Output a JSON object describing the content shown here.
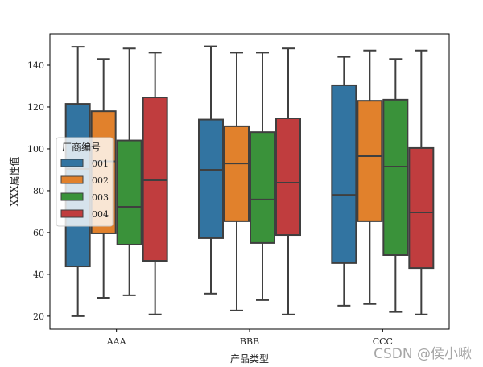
{
  "chart_data": {
    "type": "boxplot",
    "title": "",
    "xlabel": "产品类型",
    "ylabel": "XXX属性值",
    "ylim": [
      13.8,
      155
    ],
    "yticks": [
      20,
      40,
      60,
      80,
      100,
      120,
      140
    ],
    "categories": [
      "AAA",
      "BBB",
      "CCC"
    ],
    "legend": {
      "title": "厂商编号",
      "placement": "center-left"
    },
    "series": [
      {
        "name": "001",
        "color": "#3274a1",
        "boxes": [
          {
            "whislo": 20,
            "q1": 43.8,
            "med": 90.4,
            "q3": 121.5,
            "whishi": 148.8
          },
          {
            "whislo": 30.8,
            "q1": 57.3,
            "med": 90,
            "q3": 114,
            "whishi": 149
          },
          {
            "whislo": 25,
            "q1": 45.4,
            "med": 78,
            "q3": 130.4,
            "whishi": 144
          }
        ]
      },
      {
        "name": "002",
        "color": "#e1812c",
        "boxes": [
          {
            "whislo": 28.8,
            "q1": 59.6,
            "med": 94,
            "q3": 118,
            "whishi": 143
          },
          {
            "whislo": 22.7,
            "q1": 65.4,
            "med": 93,
            "q3": 110.8,
            "whishi": 146
          },
          {
            "whislo": 25.8,
            "q1": 65.4,
            "med": 96.5,
            "q3": 123,
            "whishi": 147
          }
        ]
      },
      {
        "name": "003",
        "color": "#3a923a",
        "boxes": [
          {
            "whislo": 30,
            "q1": 54.2,
            "med": 72.3,
            "q3": 104,
            "whishi": 148
          },
          {
            "whislo": 27.7,
            "q1": 55,
            "med": 75.8,
            "q3": 108,
            "whishi": 146
          },
          {
            "whislo": 22,
            "q1": 49.2,
            "med": 91.5,
            "q3": 123.5,
            "whishi": 143
          }
        ]
      },
      {
        "name": "004",
        "color": "#c03d3e",
        "boxes": [
          {
            "whislo": 20.8,
            "q1": 46.5,
            "med": 85,
            "q3": 124.6,
            "whishi": 146
          },
          {
            "whislo": 20.8,
            "q1": 58.8,
            "med": 83.8,
            "q3": 114.6,
            "whishi": 148
          },
          {
            "whislo": 20.8,
            "q1": 43,
            "med": 69.6,
            "q3": 100.4,
            "whishi": 147
          }
        ]
      }
    ]
  },
  "watermark": "CSDN @侯小啾"
}
